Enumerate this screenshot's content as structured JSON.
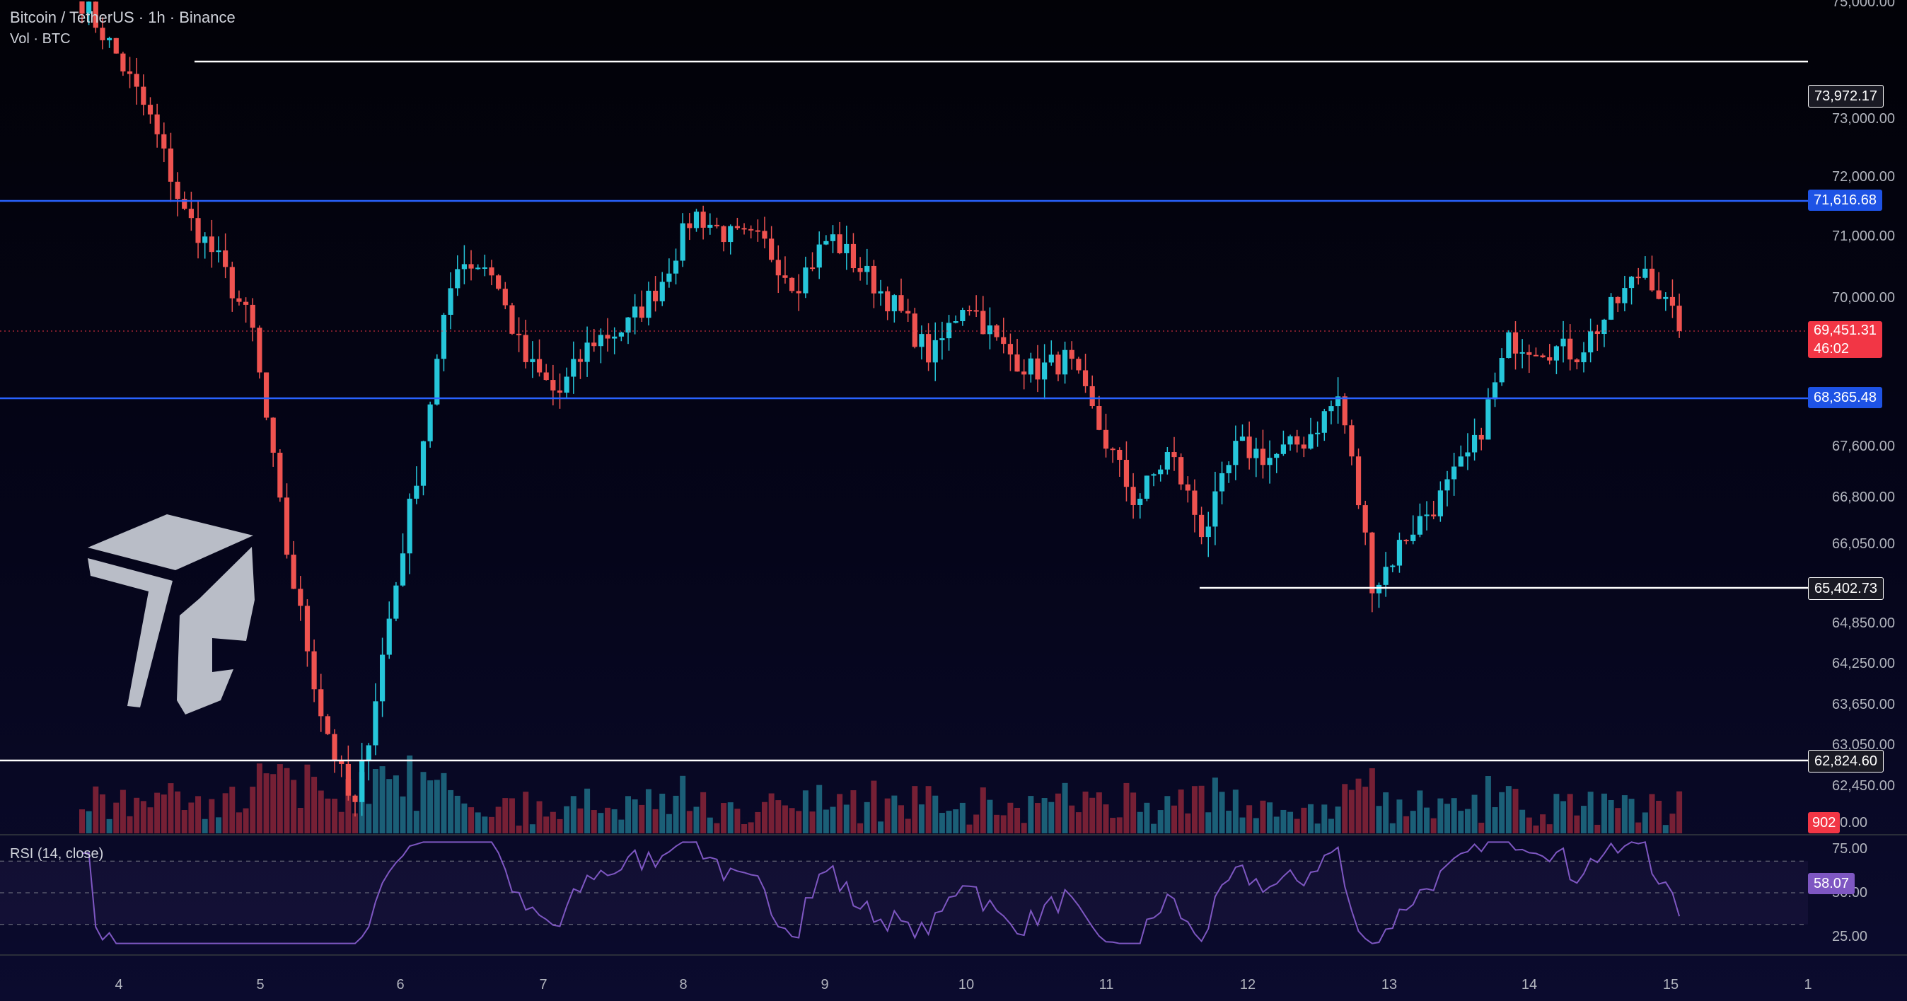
{
  "header": {
    "title": "Bitcoin / TetherUS · 1h · Binance",
    "volume_label": "Vol · BTC",
    "rsi_label": "RSI (14, close)"
  },
  "price_axis": {
    "ticks": [
      "75,000.00",
      "73,000.00",
      "72,000.00",
      "71,000.00",
      "70,000.00",
      "67,600.00",
      "66,800.00",
      "66,050.00",
      "64,850.00",
      "64,250.00",
      "63,650.00",
      "63,050.00",
      "62,450.00",
      "90.00"
    ],
    "current_price": "69,451.31",
    "countdown": "46:02",
    "volume_badge": "902"
  },
  "rsi_axis": {
    "ticks": [
      "75.00",
      "50.00",
      "25.00"
    ],
    "value": "58.07"
  },
  "time_axis": [
    "4",
    "5",
    "6",
    "7",
    "8",
    "9",
    "10",
    "11",
    "12",
    "13",
    "14",
    "15",
    "1"
  ],
  "levels": [
    {
      "label": "73,972.17",
      "color": "#ffffff",
      "kind": "white"
    },
    {
      "label": "71,616.68",
      "color": "#2962ff",
      "kind": "blue"
    },
    {
      "label": "68,365.48",
      "color": "#2962ff",
      "kind": "blue"
    },
    {
      "label": "65,402.73",
      "color": "#ffffff",
      "kind": "white"
    },
    {
      "label": "62,824.60",
      "color": "#ffffff",
      "kind": "white"
    }
  ],
  "colors": {
    "up": "#26c6da",
    "down": "#ef5350",
    "rsi": "#7e57c2",
    "current": "#f23645"
  },
  "chart_data": {
    "type": "candlestick",
    "series_waypoints_price": [
      75000,
      74100,
      73000,
      71400,
      70600,
      69500,
      66000,
      63600,
      62000,
      64800,
      67600,
      70600,
      70500,
      69000,
      68400,
      69300,
      69500,
      70200,
      71400,
      71000,
      70900,
      70200,
      71000,
      70400,
      69800,
      69000,
      70000,
      69200,
      68800,
      69000,
      67800,
      66700,
      67500,
      66200,
      67600,
      67400,
      67700,
      68400,
      65400,
      66200,
      66800,
      67600,
      69300,
      69200,
      69100,
      69800,
      70500,
      69451
    ]
  }
}
